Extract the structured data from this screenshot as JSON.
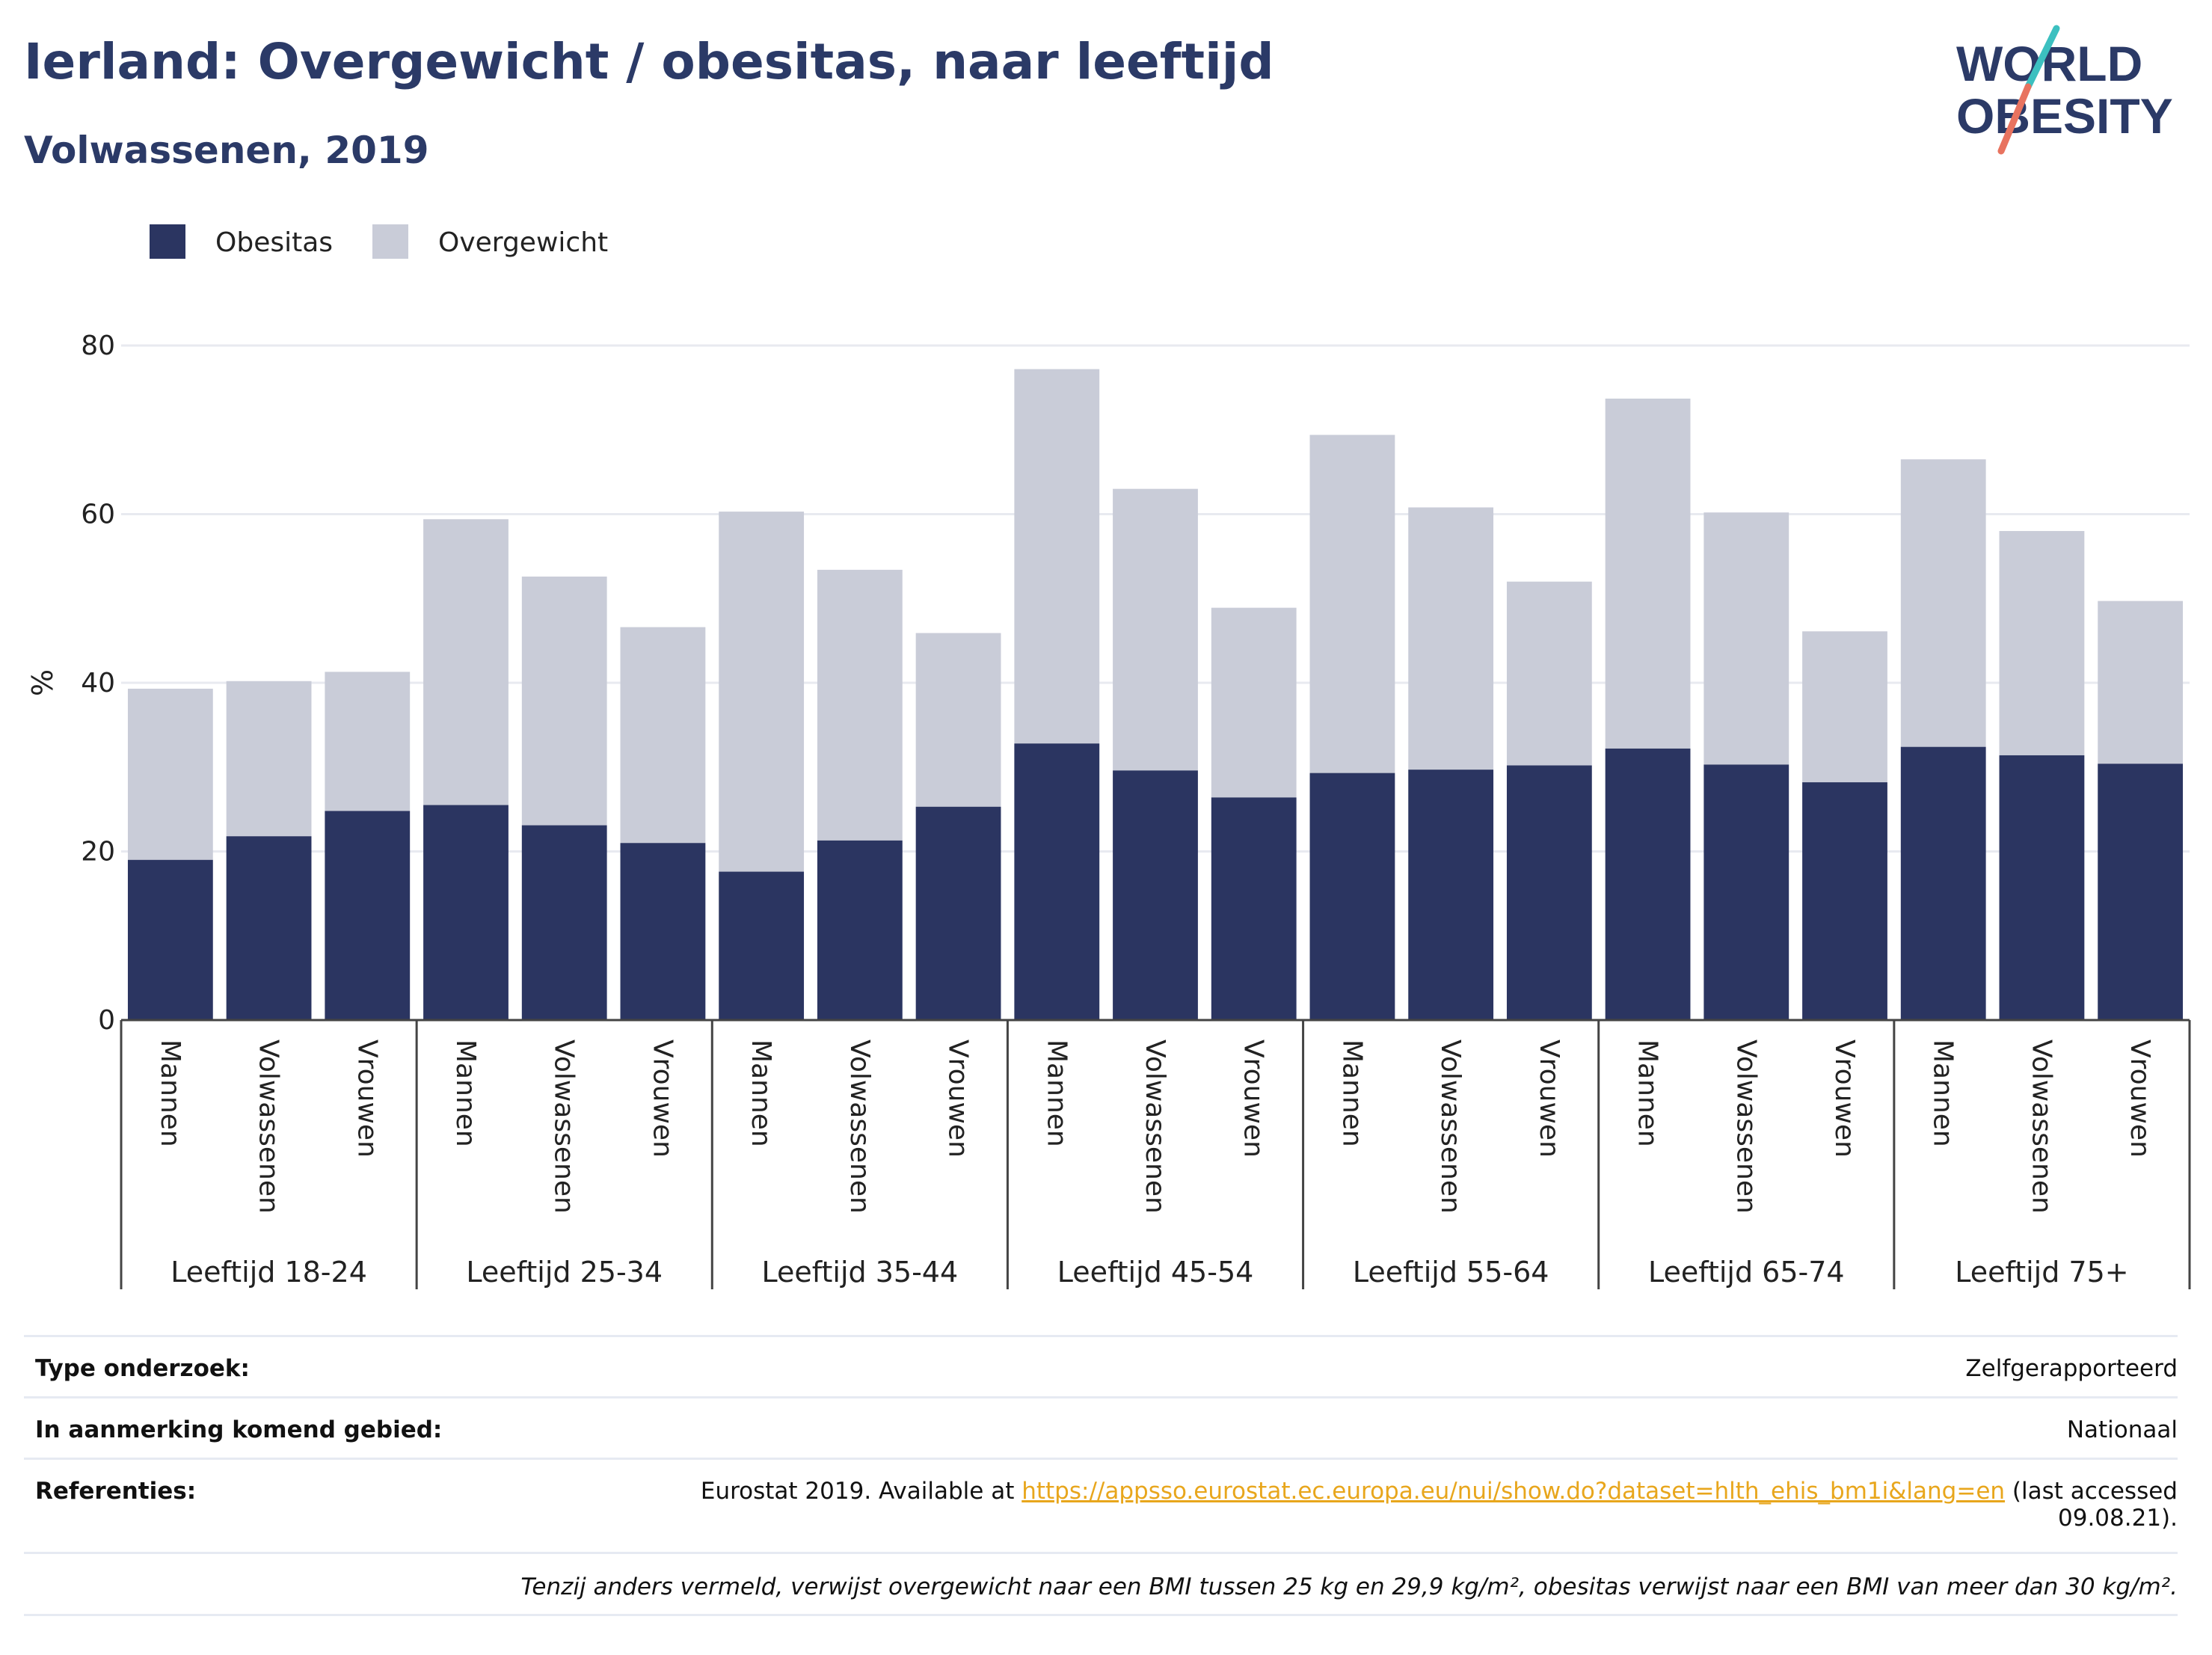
{
  "header": {
    "title": "Ierland: Overgewicht / obesitas, naar leeftijd",
    "subtitle": "Volwassenen, 2019"
  },
  "logo": {
    "line1": "WORLD",
    "line2": "OBESITY"
  },
  "colors": {
    "obesity": "#2b3561",
    "overweight": "#c9ccd8",
    "title": "#2b3a67",
    "link": "#e8a61c"
  },
  "chart_data": {
    "type": "bar",
    "stacked": true,
    "ylabel": "%",
    "ylim": [
      0,
      80
    ],
    "yticks": [
      0,
      20,
      40,
      60,
      80
    ],
    "legend_position": "top-left",
    "groups": [
      "Leeftijd 18-24",
      "Leeftijd 25-34",
      "Leeftijd 35-44",
      "Leeftijd 45-54",
      "Leeftijd 55-64",
      "Leeftijd 65-74",
      "Leeftijd 75+"
    ],
    "subcategories": [
      "Mannen",
      "Volwassenen",
      "Vrouwen"
    ],
    "series": [
      {
        "name": "Obesitas",
        "values": [
          19.0,
          21.8,
          24.8,
          25.5,
          23.1,
          21.0,
          17.6,
          21.3,
          25.3,
          32.8,
          29.6,
          26.4,
          29.3,
          29.7,
          30.2,
          32.2,
          30.3,
          28.2,
          32.4,
          31.4,
          30.4
        ]
      },
      {
        "name": "Overgewicht",
        "values": [
          20.3,
          18.4,
          16.5,
          33.9,
          29.5,
          25.6,
          42.7,
          32.1,
          20.6,
          44.4,
          33.4,
          22.5,
          40.1,
          31.1,
          21.8,
          41.5,
          29.9,
          17.9,
          34.1,
          26.6,
          19.3
        ]
      }
    ]
  },
  "info": {
    "survey_label": "Type onderzoek:",
    "survey_value": "Zelfgerapporteerd",
    "area_label": "In aanmerking komend gebied:",
    "area_value": "Nationaal",
    "refs_label": "Referenties:",
    "refs_prefix": "Eurostat 2019. Available at ",
    "refs_link": "https://appsso.eurostat.ec.europa.eu/nui/show.do?dataset=hlth_ehis_bm1i&lang=en",
    "refs_suffix": " (last accessed",
    "refs_date": "09.08.21).",
    "note": "Tenzij anders vermeld, verwijst overgewicht naar een BMI tussen 25 kg en 29,9 kg/m², obesitas verwijst naar een BMI van meer dan 30 kg/m²."
  }
}
